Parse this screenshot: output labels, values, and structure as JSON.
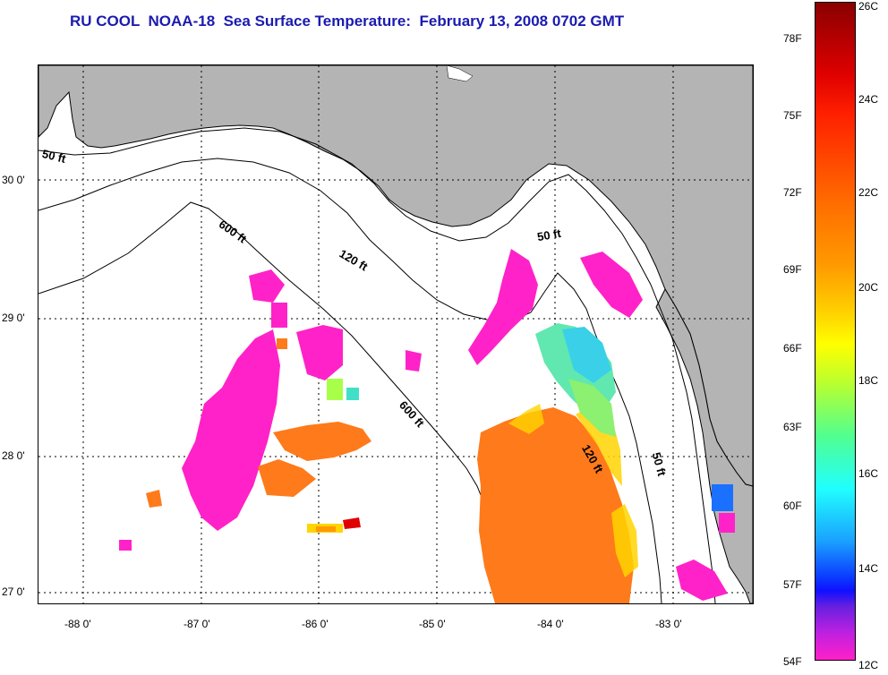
{
  "title": "RU COOL  NOAA-18  Sea Surface Temperature:  February 13, 2008 0702 GMT",
  "map": {
    "lat_labels": [
      "30 0'",
      "29 0'",
      "28 0'",
      "27 0'"
    ],
    "lon_labels": [
      "-88 0'",
      "-87 0'",
      "-86 0'",
      "-85 0'",
      "-84 0'",
      "-83 0'"
    ],
    "isobath_labels": [
      {
        "id": "iso-50-west",
        "text": "50 ft"
      },
      {
        "id": "iso-600-north",
        "text": "600 ft"
      },
      {
        "id": "iso-120-north",
        "text": "120 ft"
      },
      {
        "id": "iso-50-east",
        "text": "50 ft"
      },
      {
        "id": "iso-600-south",
        "text": "600 ft"
      },
      {
        "id": "iso-120-south",
        "text": "120 ft"
      },
      {
        "id": "iso-50-south",
        "text": "50 ft"
      }
    ],
    "land_color": "#b4b4b4",
    "cloud_mask_color": "#ff22c8"
  },
  "colorbar": {
    "fahrenheit_labels": [
      "78F",
      "75F",
      "72F",
      "69F",
      "66F",
      "63F",
      "60F",
      "57F",
      "54F"
    ],
    "celsius_labels": [
      "26C",
      "24C",
      "22C",
      "20C",
      "18C",
      "16C",
      "14C",
      "12C"
    ],
    "range_celsius": [
      12,
      26
    ],
    "range_fahrenheit": [
      54,
      79
    ]
  }
}
